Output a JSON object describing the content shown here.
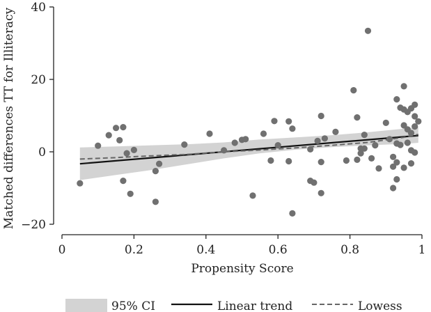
{
  "chart_data": {
    "type": "scatter",
    "title": "",
    "xlabel": "Propensity Score",
    "ylabel": "Matched differences TT for Illiteracy",
    "xlim": [
      0,
      1
    ],
    "ylim": [
      -20,
      40
    ],
    "xticks": [
      0,
      0.2,
      0.4,
      0.6,
      0.8,
      1
    ],
    "xtick_labels": [
      "0",
      "0.2",
      "0.4",
      "0.6",
      "0.8",
      "1"
    ],
    "yticks": [
      -20,
      0,
      20,
      40
    ],
    "ytick_labels": [
      "−20",
      "0",
      "20",
      "40"
    ],
    "grid": false,
    "legend_position": "bottom",
    "colors": {
      "points": "#707070",
      "ci_band": "#d3d3d3",
      "linear": "#111111",
      "lowess": "#666666",
      "axis": "#222222"
    },
    "series": [
      {
        "name": "Matched differences",
        "kind": "scatter",
        "points": [
          [
            0.05,
            -8.7
          ],
          [
            0.1,
            1.7
          ],
          [
            0.13,
            4.6
          ],
          [
            0.15,
            6.6
          ],
          [
            0.16,
            3.2
          ],
          [
            0.17,
            6.8
          ],
          [
            0.17,
            -8.0
          ],
          [
            0.18,
            -0.4
          ],
          [
            0.19,
            -11.6
          ],
          [
            0.2,
            0.5
          ],
          [
            0.26,
            -13.8
          ],
          [
            0.26,
            -5.3
          ],
          [
            0.27,
            -3.3
          ],
          [
            0.34,
            2.0
          ],
          [
            0.41,
            5.0
          ],
          [
            0.45,
            0.4
          ],
          [
            0.48,
            2.5
          ],
          [
            0.5,
            3.3
          ],
          [
            0.51,
            3.5
          ],
          [
            0.53,
            -12.1
          ],
          [
            0.56,
            5.0
          ],
          [
            0.58,
            -2.4
          ],
          [
            0.59,
            8.5
          ],
          [
            0.6,
            1.8
          ],
          [
            0.63,
            8.4
          ],
          [
            0.63,
            -2.6
          ],
          [
            0.64,
            6.4
          ],
          [
            0.64,
            -17.0
          ],
          [
            0.69,
            0.7
          ],
          [
            0.69,
            -8.0
          ],
          [
            0.7,
            -8.5
          ],
          [
            0.71,
            3.0
          ],
          [
            0.72,
            9.9
          ],
          [
            0.72,
            -2.8
          ],
          [
            0.72,
            -11.4
          ],
          [
            0.73,
            3.7
          ],
          [
            0.76,
            5.5
          ],
          [
            0.79,
            -2.4
          ],
          [
            0.81,
            17.0
          ],
          [
            0.82,
            9.5
          ],
          [
            0.82,
            -2.2
          ],
          [
            0.83,
            0.9
          ],
          [
            0.83,
            -0.4
          ],
          [
            0.84,
            4.7
          ],
          [
            0.84,
            0.9
          ],
          [
            0.85,
            33.4
          ],
          [
            0.86,
            -1.8
          ],
          [
            0.87,
            1.8
          ],
          [
            0.88,
            -4.6
          ],
          [
            0.9,
            8.0
          ],
          [
            0.91,
            3.5
          ],
          [
            0.92,
            -10.0
          ],
          [
            0.92,
            -4.1
          ],
          [
            0.92,
            -1.4
          ],
          [
            0.93,
            14.5
          ],
          [
            0.93,
            2.3
          ],
          [
            0.93,
            -2.9
          ],
          [
            0.93,
            -7.6
          ],
          [
            0.94,
            12.2
          ],
          [
            0.94,
            1.9
          ],
          [
            0.95,
            18.1
          ],
          [
            0.95,
            11.7
          ],
          [
            0.95,
            7.3
          ],
          [
            0.95,
            -4.4
          ],
          [
            0.96,
            11.0
          ],
          [
            0.96,
            6.2
          ],
          [
            0.96,
            2.5
          ],
          [
            0.97,
            12.0
          ],
          [
            0.97,
            5.2
          ],
          [
            0.97,
            0.4
          ],
          [
            0.97,
            -3.2
          ],
          [
            0.98,
            13.0
          ],
          [
            0.98,
            9.8
          ],
          [
            0.98,
            7.0
          ],
          [
            0.98,
            -0.2
          ],
          [
            0.99,
            8.4
          ]
        ]
      },
      {
        "name": "95% CI",
        "kind": "band",
        "x": [
          0.05,
          0.15,
          0.25,
          0.35,
          0.45,
          0.55,
          0.65,
          0.75,
          0.85,
          0.95,
          0.99
        ],
        "upper": [
          1.2,
          1.5,
          1.8,
          2.1,
          2.6,
          3.4,
          4.0,
          4.6,
          5.4,
          6.4,
          6.8
        ],
        "lower": [
          -7.8,
          -6.4,
          -5.0,
          -3.4,
          -1.8,
          -0.4,
          0.6,
          1.3,
          1.8,
          2.2,
          2.5
        ]
      },
      {
        "name": "Linear trend",
        "kind": "line",
        "x": [
          0.05,
          0.99
        ],
        "y": [
          -3.3,
          4.5
        ]
      },
      {
        "name": "Lowess",
        "kind": "dashed-line",
        "x": [
          0.05,
          0.15,
          0.25,
          0.35,
          0.45,
          0.55,
          0.65,
          0.75,
          0.85,
          0.95,
          0.99
        ],
        "y": [
          -2.0,
          -1.6,
          -1.1,
          -0.7,
          0.0,
          0.5,
          1.1,
          1.8,
          2.6,
          4.0,
          4.8
        ]
      }
    ],
    "legend": [
      {
        "label": "95% CI",
        "kind": "band"
      },
      {
        "label": "Linear trend",
        "kind": "line"
      },
      {
        "label": "Lowess",
        "kind": "dashed-line"
      }
    ]
  }
}
